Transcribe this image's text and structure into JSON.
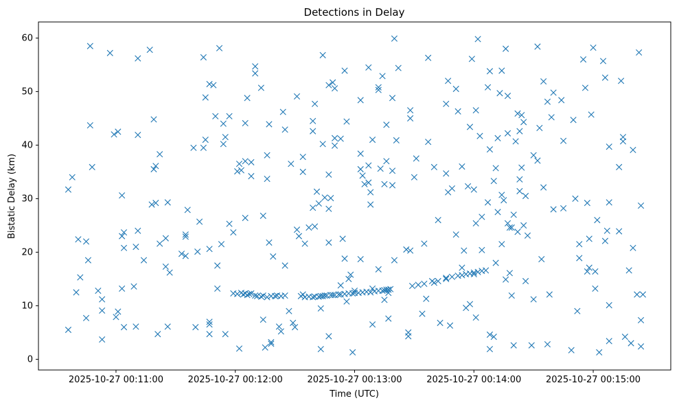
{
  "chart_data": {
    "type": "scatter",
    "title": "Detections in Delay",
    "xlabel": "Time (UTC)",
    "ylabel": "Bistatic Delay (km)",
    "marker": "x",
    "color": "#1f77b4",
    "grid": false,
    "xlim": [
      "2025-10-27 00:10:21",
      "2025-10-27 00:15:39"
    ],
    "ylim": [
      -2,
      63
    ],
    "x_ticks": [
      "2025-10-27 00:11:00",
      "2025-10-27 00:12:00",
      "2025-10-27 00:13:00",
      "2025-10-27 00:14:00",
      "2025-10-27 00:15:00"
    ],
    "y_ticks": [
      0,
      10,
      20,
      30,
      40,
      50,
      60
    ],
    "track_points": [
      [
        "2025-10-27 00:11:59",
        12.3
      ],
      [
        "2025-10-27 00:12:01",
        12.2
      ],
      [
        "2025-10-27 00:12:03",
        12.4
      ],
      [
        "2025-10-27 00:12:04",
        12.1
      ],
      [
        "2025-10-27 00:12:05",
        12.3
      ],
      [
        "2025-10-27 00:12:06",
        12.0
      ],
      [
        "2025-10-27 00:12:07",
        12.2
      ],
      [
        "2025-10-27 00:12:08",
        12.3
      ],
      [
        "2025-10-27 00:12:10",
        11.9
      ],
      [
        "2025-10-27 00:12:11",
        11.8
      ],
      [
        "2025-10-27 00:12:13",
        11.7
      ],
      [
        "2025-10-27 00:12:14",
        11.9
      ],
      [
        "2025-10-27 00:12:16",
        11.6
      ],
      [
        "2025-10-27 00:12:18",
        11.8
      ],
      [
        "2025-10-27 00:12:20",
        11.8
      ],
      [
        "2025-10-27 00:12:21",
        11.9
      ],
      [
        "2025-10-27 00:12:23",
        11.8
      ],
      [
        "2025-10-27 00:12:25",
        11.9
      ],
      [
        "2025-10-27 00:12:33",
        11.8
      ],
      [
        "2025-10-27 00:12:35",
        11.6
      ],
      [
        "2025-10-27 00:12:37",
        11.7
      ],
      [
        "2025-10-27 00:12:39",
        11.6
      ],
      [
        "2025-10-27 00:12:40",
        11.7
      ],
      [
        "2025-10-27 00:12:42",
        11.7
      ],
      [
        "2025-10-27 00:12:43",
        11.8
      ],
      [
        "2025-10-27 00:12:44",
        11.8
      ],
      [
        "2025-10-27 00:12:45",
        11.9
      ],
      [
        "2025-10-27 00:12:46",
        11.9
      ],
      [
        "2025-10-27 00:12:48",
        12.0
      ],
      [
        "2025-10-27 00:12:49",
        12.0
      ],
      [
        "2025-10-27 00:12:50",
        12.0
      ],
      [
        "2025-10-27 00:12:52",
        12.1
      ],
      [
        "2025-10-27 00:12:53",
        12.1
      ],
      [
        "2025-10-27 00:12:55",
        12.2
      ],
      [
        "2025-10-27 00:12:57",
        12.3
      ],
      [
        "2025-10-27 00:12:59",
        12.3
      ],
      [
        "2025-10-27 00:13:00",
        12.4
      ],
      [
        "2025-10-27 00:13:02",
        12.4
      ],
      [
        "2025-10-27 00:13:04",
        12.5
      ],
      [
        "2025-10-27 00:13:06",
        12.6
      ],
      [
        "2025-10-27 00:13:08",
        12.5
      ],
      [
        "2025-10-27 00:13:10",
        12.7
      ],
      [
        "2025-10-27 00:13:12",
        12.8
      ],
      [
        "2025-10-27 00:13:14",
        12.8
      ],
      [
        "2025-10-27 00:13:15",
        12.9
      ],
      [
        "2025-10-27 00:13:16",
        13.0
      ],
      [
        "2025-10-27 00:13:17",
        13.0
      ],
      [
        "2025-10-27 00:13:18",
        13.1
      ],
      [
        "2025-10-27 00:13:29",
        13.7
      ],
      [
        "2025-10-27 00:13:32",
        13.9
      ],
      [
        "2025-10-27 00:13:35",
        14.1
      ],
      [
        "2025-10-27 00:13:40",
        14.3
      ],
      [
        "2025-10-27 00:13:46",
        15.0
      ],
      [
        "2025-10-27 00:13:49",
        15.4
      ],
      [
        "2025-10-27 00:13:52",
        15.6
      ],
      [
        "2025-10-27 00:13:54",
        15.7
      ],
      [
        "2025-10-27 00:13:56",
        15.9
      ],
      [
        "2025-10-27 00:13:58",
        16.0
      ],
      [
        "2025-10-27 00:14:00",
        16.2
      ],
      [
        "2025-10-27 00:14:02",
        16.3
      ],
      [
        "2025-10-27 00:14:04",
        16.5
      ],
      [
        "2025-10-27 00:14:06",
        16.6
      ]
    ]
  }
}
